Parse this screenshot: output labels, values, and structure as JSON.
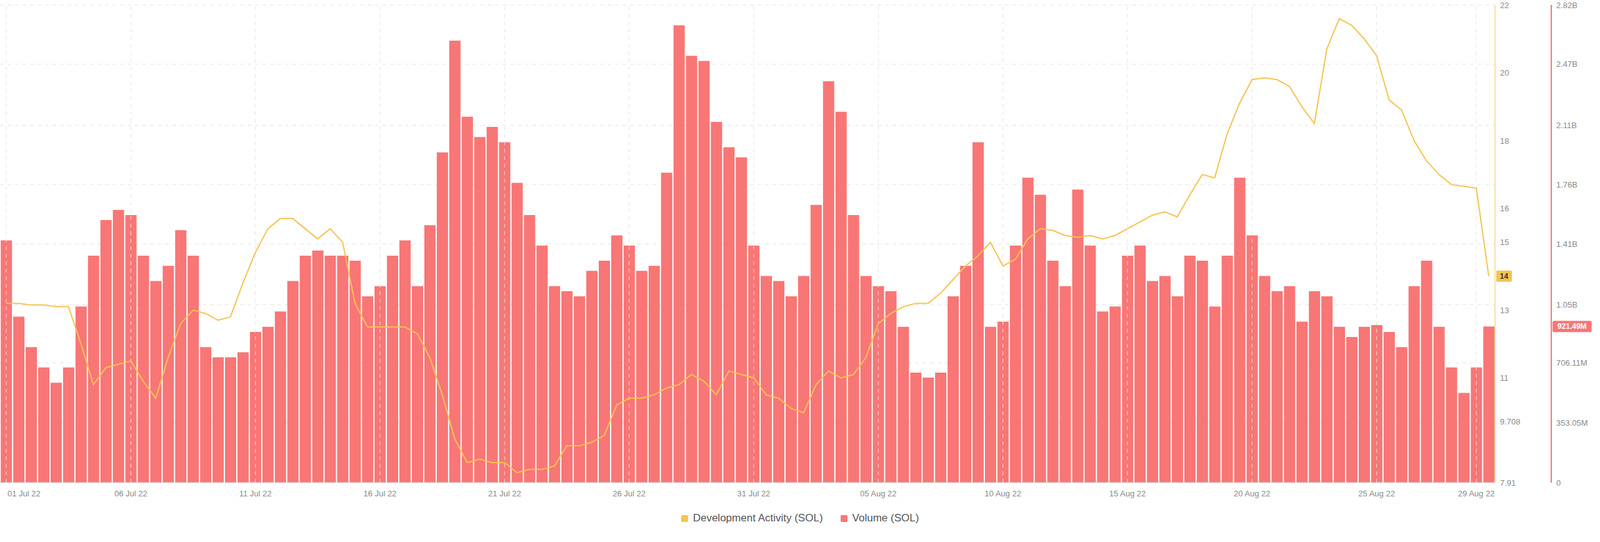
{
  "chart_data": {
    "type": "bar_line",
    "categories": [
      "01 Jul 22",
      null,
      null,
      null,
      null,
      null,
      null,
      null,
      null,
      null,
      "06 Jul 22",
      null,
      null,
      null,
      null,
      null,
      null,
      null,
      null,
      null,
      "11 Jul 22",
      null,
      null,
      null,
      null,
      null,
      null,
      null,
      null,
      null,
      "16 Jul 22",
      null,
      null,
      null,
      null,
      null,
      null,
      null,
      null,
      null,
      "21 Jul 22",
      null,
      null,
      null,
      null,
      null,
      null,
      null,
      null,
      null,
      "26 Jul 22",
      null,
      null,
      null,
      null,
      null,
      null,
      null,
      null,
      null,
      "31 Jul 22",
      null,
      null,
      null,
      null,
      null,
      null,
      null,
      null,
      null,
      "05 Aug 22",
      null,
      null,
      null,
      null,
      null,
      null,
      null,
      null,
      null,
      "10 Aug 22",
      null,
      null,
      null,
      null,
      null,
      null,
      null,
      null,
      null,
      "15 Aug 22",
      null,
      null,
      null,
      null,
      null,
      null,
      null,
      null,
      null,
      "20 Aug 22",
      null,
      null,
      null,
      null,
      null,
      null,
      null,
      null,
      null,
      "25 Aug 22",
      null,
      null,
      null,
      null,
      null,
      null,
      null,
      "29 Aug 22",
      null
    ],
    "series": [
      {
        "name": "Development Activity (SOL)",
        "type": "line",
        "color": "#f5c451",
        "values": [
          13.2,
          13.2,
          13.15,
          13.15,
          13.1,
          13.1,
          12.0,
          10.8,
          11.3,
          11.4,
          11.5,
          10.9,
          10.4,
          11.6,
          12.6,
          13.0,
          12.9,
          12.7,
          12.8,
          13.8,
          14.7,
          15.4,
          15.7,
          15.7,
          15.4,
          15.1,
          15.4,
          15.0,
          13.2,
          12.5,
          12.5,
          12.5,
          12.5,
          12.3,
          11.6,
          10.5,
          9.2,
          8.5,
          8.6,
          8.5,
          8.5,
          8.2,
          8.3,
          8.3,
          8.4,
          9.0,
          9.0,
          9.1,
          9.3,
          10.2,
          10.4,
          10.4,
          10.5,
          10.7,
          10.8,
          11.1,
          10.9,
          10.5,
          11.2,
          11.1,
          11.0,
          10.5,
          10.4,
          10.1,
          9.97,
          10.8,
          11.2,
          11.0,
          11.1,
          11.6,
          12.6,
          12.9,
          13.1,
          13.2,
          13.2,
          13.5,
          13.9,
          14.3,
          14.6,
          15.0,
          14.3,
          14.5,
          15.1,
          15.4,
          15.35,
          15.2,
          15.15,
          15.2,
          15.1,
          15.2,
          15.4,
          15.6,
          15.8,
          15.9,
          15.75,
          16.4,
          17.0,
          16.9,
          18.2,
          19.1,
          19.8,
          19.85,
          19.8,
          19.6,
          19.0,
          18.5,
          20.7,
          21.6,
          21.4,
          21.0,
          20.5,
          19.2,
          18.9,
          18.0,
          17.4,
          17.0,
          16.7,
          16.65,
          16.6,
          14.0
        ]
      },
      {
        "name": "Volume (SOL)",
        "type": "bar",
        "color": "#f87676",
        "axis": "y2",
        "values": [
          1430000000.0,
          980000000.0,
          800000000.0,
          680000000.0,
          590000000.0,
          680000000.0,
          1040000000.0,
          1340000000.0,
          1550000000.0,
          1610000000.0,
          1580000000.0,
          1340000000.0,
          1190000000.0,
          1280000000.0,
          1490000000.0,
          1340000000.0,
          800000000.0,
          740000000.0,
          740000000.0,
          770000000.0,
          890000000.0,
          920000000.0,
          1010000000.0,
          1190000000.0,
          1340000000.0,
          1370000000.0,
          1340000000.0,
          1340000000.0,
          1310000000.0,
          1100000000.0,
          1160000000.0,
          1340000000.0,
          1430000000.0,
          1160000000.0,
          1520000000.0,
          1950000000.0,
          2610000000.0,
          2160000000.0,
          2040000000.0,
          2100000000.0,
          2010000000.0,
          1770000000.0,
          1580000000.0,
          1400000000.0,
          1160000000.0,
          1130000000.0,
          1100000000.0,
          1250000000.0,
          1310000000.0,
          1460000000.0,
          1400000000.0,
          1250000000.0,
          1280000000.0,
          1830000000.0,
          2700000000.0,
          2520000000.0,
          2490000000.0,
          2130000000.0,
          1980000000.0,
          1920000000.0,
          1400000000.0,
          1220000000.0,
          1190000000.0,
          1100000000.0,
          1220000000.0,
          1640000000.0,
          2370000000.0,
          2190000000.0,
          1580000000.0,
          1220000000.0,
          1160000000.0,
          1130000000.0,
          920000000.0,
          650000000.0,
          620000000.0,
          650000000.0,
          1100000000.0,
          1280000000.0,
          2010000000.0,
          920000000.0,
          950000000.0,
          1400000000.0,
          1800000000.0,
          1700000000.0,
          1310000000.0,
          1160000000.0,
          1730000000.0,
          1400000000.0,
          1010000000.0,
          1040000000.0,
          1340000000.0,
          1400000000.0,
          1190000000.0,
          1220000000.0,
          1100000000.0,
          1340000000.0,
          1310000000.0,
          1040000000.0,
          1340000000.0,
          1800000000.0,
          1460000000.0,
          1220000000.0,
          1130000000.0,
          1160000000.0,
          950000000.0,
          1130000000.0,
          1100000000.0,
          920000000.0,
          860000000.0,
          920000000.0,
          930000000.0,
          890000000.0,
          800000000.0,
          1160000000.0,
          1310000000.0,
          920000000.0,
          680000000.0,
          530000000.0,
          680000000.0,
          921490000
        ]
      }
    ],
    "ylim": [
      7.91,
      22
    ],
    "yticks": [
      7.91,
      9.708,
      11,
      13,
      15,
      16,
      18,
      20,
      22
    ],
    "y2lim": [
      0,
      2820000000
    ],
    "y2ticks": [
      0,
      {
        "value": 353050000,
        "label": "353.05M"
      },
      {
        "value": 706110000,
        "label": "706.11M"
      },
      {
        "value": 1050000000,
        "label": "1.05B"
      },
      {
        "value": 1410000000,
        "label": "1.41B"
      },
      {
        "value": 1760000000,
        "label": "1.76B"
      },
      {
        "value": 2110000000,
        "label": "2.11B"
      },
      {
        "value": 2470000000,
        "label": "2.47B"
      },
      {
        "value": 2820000000,
        "label": "2.82B"
      }
    ],
    "annotations": [
      {
        "text": "14",
        "value": 14,
        "axis": "y"
      },
      {
        "text": "921.49M",
        "value": 921490000,
        "axis": "y2"
      }
    ],
    "grid": true,
    "legend": "bottom"
  }
}
